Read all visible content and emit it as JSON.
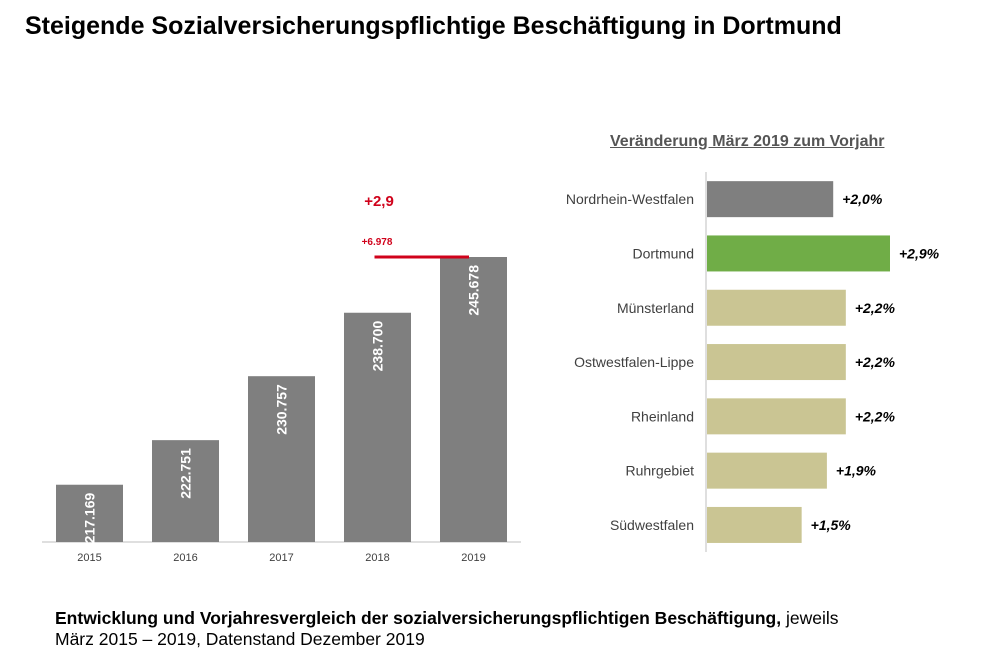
{
  "title": "Steigende Sozialversicherungspflichtige Beschäftigung in Dortmund",
  "caption": {
    "bold": "Entwicklung und Vorjahresvergleich der sozialversicherungspflichtigen Beschäftigung,",
    "normal_1": " jeweils",
    "normal_2": "März 2015 – 2019, Datenstand Dezember 2019"
  },
  "chart_data": [
    {
      "type": "bar",
      "categories": [
        "2015",
        "2016",
        "2017",
        "2018",
        "2019"
      ],
      "values": [
        217169,
        222751,
        230757,
        238700,
        245678
      ],
      "value_labels": [
        "217.169",
        "222.751",
        "230.757",
        "238.700",
        "245.678"
      ],
      "ylim": [
        210000,
        249000
      ],
      "annotations": {
        "percent": "+2,9",
        "absolute": "+6.978"
      },
      "colors": {
        "bar": "#7f7f7f",
        "annotation": "#d0021b"
      }
    },
    {
      "type": "bar",
      "orientation": "horizontal",
      "title": "Veränderung März 2019 zum Vorjahr",
      "categories": [
        "Nordrhein-Westfalen",
        "Dortmund",
        "Münsterland",
        "Ostwestfalen-Lippe",
        "Rheinland",
        "Ruhrgebiet",
        "Südwestfalen"
      ],
      "values": [
        2.0,
        2.9,
        2.2,
        2.2,
        2.2,
        1.9,
        1.5
      ],
      "value_labels": [
        "+2,0%",
        "+2,9%",
        "+2,2%",
        "+2,2%",
        "+2,2%",
        "+1,9%",
        "+1,5%"
      ],
      "xlim": [
        0,
        3.0
      ],
      "colors": [
        "#7f7f7f",
        "#70ad47",
        "#cac593",
        "#cac593",
        "#cac593",
        "#cac593",
        "#cac593"
      ]
    }
  ]
}
